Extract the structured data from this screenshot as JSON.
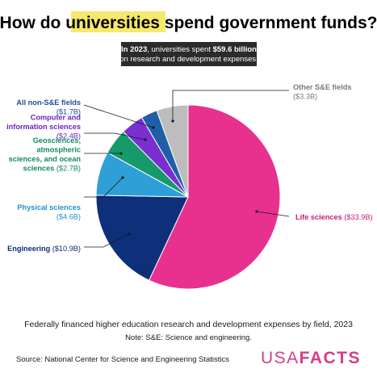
{
  "header": {
    "title_before": "How do ",
    "title_highlight": "universities",
    "title_after": " spend government funds?"
  },
  "callout": {
    "line1_prefix": "In 2023",
    "line1_mid": ", universities spent ",
    "line1_amount": "$59.6 billion",
    "line2": "on research and development expenses."
  },
  "footer": {
    "caption": "Federally financed higher education research and development expenses by field, 2023",
    "note": "Note: S&E: Science and engineering.",
    "source": "Source: National Center for Science and Engineering Statistics",
    "logo_usa": "USA",
    "logo_facts": "FACTS"
  },
  "colors": {
    "highlight": "#f5e96b",
    "brand": "#d63d8a"
  },
  "chart_data": {
    "type": "pie",
    "unit": "billion USD",
    "title": "How do universities spend government funds?",
    "categories": [
      "Life sciences",
      "Engineering",
      "Physical sciences",
      "Geosciences, atmospheric sciences, and ocean sciences",
      "Computer and information sciences",
      "All non-S&E fields",
      "Other S&E fields"
    ],
    "values": [
      33.9,
      10.9,
      4.6,
      2.7,
      2.4,
      1.7,
      3.3
    ],
    "slices": [
      {
        "name": "Life sciences",
        "label_lines": [
          "Life sciences"
        ],
        "value_label": "($33.9B)",
        "value": 33.9,
        "color": "#e8318e",
        "label_color": "#c41f74"
      },
      {
        "name": "Engineering",
        "label_lines": [
          "Engineering"
        ],
        "value_label": "($10.9B)",
        "value": 10.9,
        "color": "#0e2f7a",
        "label_color": "#0e2f7a"
      },
      {
        "name": "Physical sciences",
        "label_lines": [
          "Physical sciences"
        ],
        "value_label": "($4.6B)",
        "value": 4.6,
        "color": "#2f9fd8",
        "label_color": "#2492cc"
      },
      {
        "name": "Geosciences, atmospheric sciences, and ocean sciences",
        "label_lines": [
          "Geosciences,",
          "atmospheric",
          "sciences, and ocean"
        ],
        "value_label": "($2.7B)",
        "last_line_prefix": "sciences",
        "value": 2.7,
        "color": "#16996b",
        "label_color": "#138a60"
      },
      {
        "name": "Computer and information sciences",
        "label_lines": [
          "Computer and",
          "information sciences"
        ],
        "value_label": "($2.4B)",
        "value": 2.4,
        "color": "#7a2fd0",
        "label_color": "#6c24bf"
      },
      {
        "name": "All non-S&E fields",
        "label_lines": [
          "All non-S&E fields"
        ],
        "value_label": "($1.7B)",
        "value": 1.7,
        "color": "#1f5fa8",
        "label_color": "#1f4f9a"
      },
      {
        "name": "Other S&E fields",
        "label_lines": [
          "Other S&E fields"
        ],
        "value_label": "($3.3B)",
        "value": 3.3,
        "color": "#bdbdbd",
        "label_color": "#7a7a7a"
      }
    ],
    "legend": "direct labels"
  }
}
